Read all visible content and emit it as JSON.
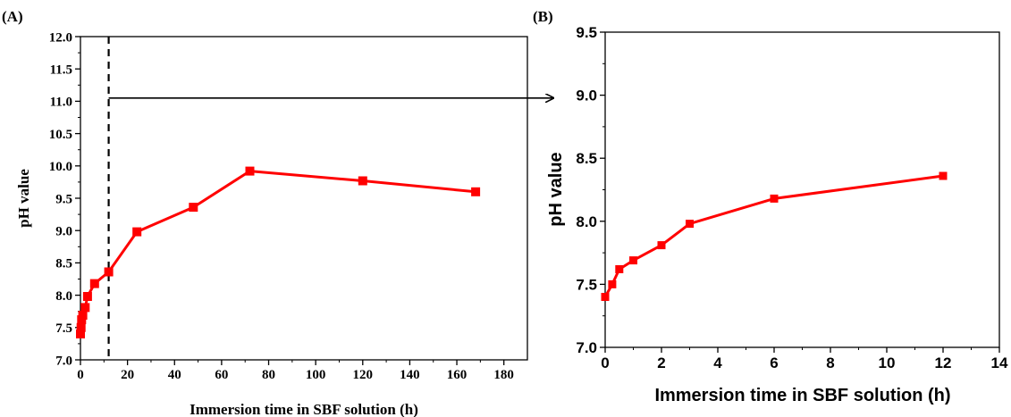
{
  "chart_data": [
    {
      "panel_label": "(A)",
      "type": "line",
      "xlabel": "Immersion time in SBF solution (h)",
      "ylabel": "pH value",
      "xlim": [
        0,
        190
      ],
      "ylim": [
        7.0,
        12.0
      ],
      "x_ticks": [
        "0",
        "20",
        "40",
        "60",
        "80",
        "100",
        "120",
        "140",
        "160",
        "180"
      ],
      "y_ticks": [
        "7.0",
        "7.5",
        "8.0",
        "8.5",
        "9.0",
        "9.5",
        "10.0",
        "10.5",
        "11.0",
        "11.5",
        "12.0"
      ],
      "grid": false,
      "series": [
        {
          "color": "#ff0000",
          "marker": "square",
          "x": [
            0,
            0.25,
            0.5,
            1,
            2,
            3,
            6,
            12,
            24,
            48,
            72,
            120,
            168
          ],
          "y": [
            7.4,
            7.5,
            7.62,
            7.69,
            7.81,
            7.98,
            8.18,
            8.36,
            8.98,
            9.36,
            9.92,
            9.77,
            9.6
          ]
        }
      ],
      "annotations": {
        "dashed_vertical_line_x": 12,
        "arrow_y": 11.05
      }
    },
    {
      "panel_label": "(B)",
      "type": "line",
      "xlabel": "Immersion time in SBF solution (h)",
      "ylabel": "pH value",
      "xlim": [
        0,
        14
      ],
      "ylim": [
        7.0,
        9.5
      ],
      "x_ticks": [
        "0",
        "2",
        "4",
        "6",
        "8",
        "10",
        "12",
        "14"
      ],
      "y_ticks": [
        "7.0",
        "7.5",
        "8.0",
        "8.5",
        "9.0",
        "9.5"
      ],
      "grid": false,
      "series": [
        {
          "color": "#ff0000",
          "marker": "square",
          "x": [
            0,
            0.25,
            0.5,
            1,
            2,
            3,
            6,
            12
          ],
          "y": [
            7.4,
            7.5,
            7.62,
            7.69,
            7.81,
            7.98,
            8.18,
            8.36
          ]
        }
      ]
    }
  ]
}
